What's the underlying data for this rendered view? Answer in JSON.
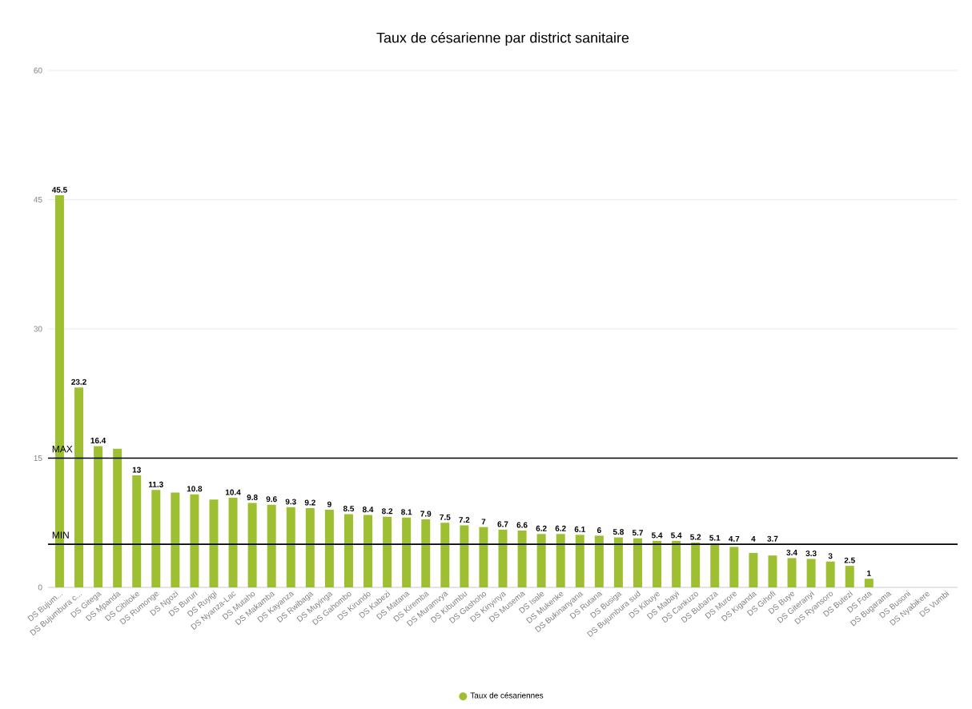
{
  "chart_data": {
    "type": "bar",
    "title": "Taux de césarienne par district sanitaire",
    "categories": [
      "DS Bujum...",
      "DS Bujumbura c...",
      "DS Gitega",
      "DS Mpanda",
      "DS Cibitoke",
      "DS Rumonge",
      "DS Ngozi",
      "DS Bururi",
      "DS Ruyigi",
      "DS Nyanza-Lac",
      "DS Mutaho",
      "DS Makamba",
      "DS Kayanza",
      "DS Rwibaga",
      "DS Muyinga",
      "DS Gahombo",
      "DS Kirundo",
      "DS Kabezi",
      "DS Matana",
      "DS Kiremba",
      "DS Muramvya",
      "DS Kibumbu",
      "DS Gashoho",
      "DS Kinyinya",
      "DS Musema",
      "DS Isale",
      "DS Mukenke",
      "DS Bukinanyana",
      "DS Rutana",
      "DS Busiga",
      "DS Bujumbura sud",
      "DS Kibuye",
      "DS Mabayi",
      "DS Cankuzo",
      "DS Bubanza",
      "DS Murore",
      "DS Kiganda",
      "DS Gihofi",
      "DS Buye",
      "DS Giteranyi",
      "DS Ryansoro",
      "DS Butezi",
      "DS Fota",
      "DS Bugarama",
      "DS Busoni",
      "DS Nyabikere",
      "DS Vumbi"
    ],
    "series": [
      {
        "name": "Taux de césariennes",
        "color": "#9fbf32",
        "values": [
          45.5,
          23.2,
          16.4,
          16.1,
          13,
          11.3,
          11,
          10.8,
          10.2,
          10.4,
          9.8,
          9.6,
          9.3,
          9.2,
          9,
          8.5,
          8.4,
          8.2,
          8.1,
          7.9,
          7.5,
          7.2,
          7,
          6.7,
          6.6,
          6.2,
          6.2,
          6.1,
          6,
          5.8,
          5.7,
          5.4,
          5.4,
          5.2,
          5.1,
          4.7,
          4,
          3.7,
          3.4,
          3.3,
          3,
          2.5,
          1,
          0,
          0,
          0,
          0
        ],
        "value_labels": [
          "45.5",
          "23.2",
          "16.4",
          null,
          "13",
          "11.3",
          null,
          "10.8",
          null,
          "10.4",
          "9.8",
          "9.6",
          "9.3",
          "9.2",
          "9",
          "8.5",
          "8.4",
          "8.2",
          "8.1",
          "7.9",
          "7.5",
          "7.2",
          "7",
          "6.7",
          "6.6",
          "6.2",
          "6.2",
          "6.1",
          "6",
          "5.8",
          "5.7",
          "5.4",
          "5.4",
          "5.2",
          "5.1",
          "4.7",
          "4",
          "3.7",
          "3.4",
          "3.3",
          "3",
          "2.5",
          "1",
          null,
          null,
          null,
          null
        ]
      }
    ],
    "ylim": [
      0,
      60
    ],
    "yticks": [
      0,
      15,
      30,
      45,
      60
    ],
    "grid": "y",
    "legend": "bottom",
    "ref_lines": [
      {
        "axis": "y",
        "value": 15,
        "label": "MAX",
        "color": "#000000"
      },
      {
        "axis": "y",
        "value": 5,
        "label": "MIN",
        "color": "#000000"
      }
    ]
  }
}
